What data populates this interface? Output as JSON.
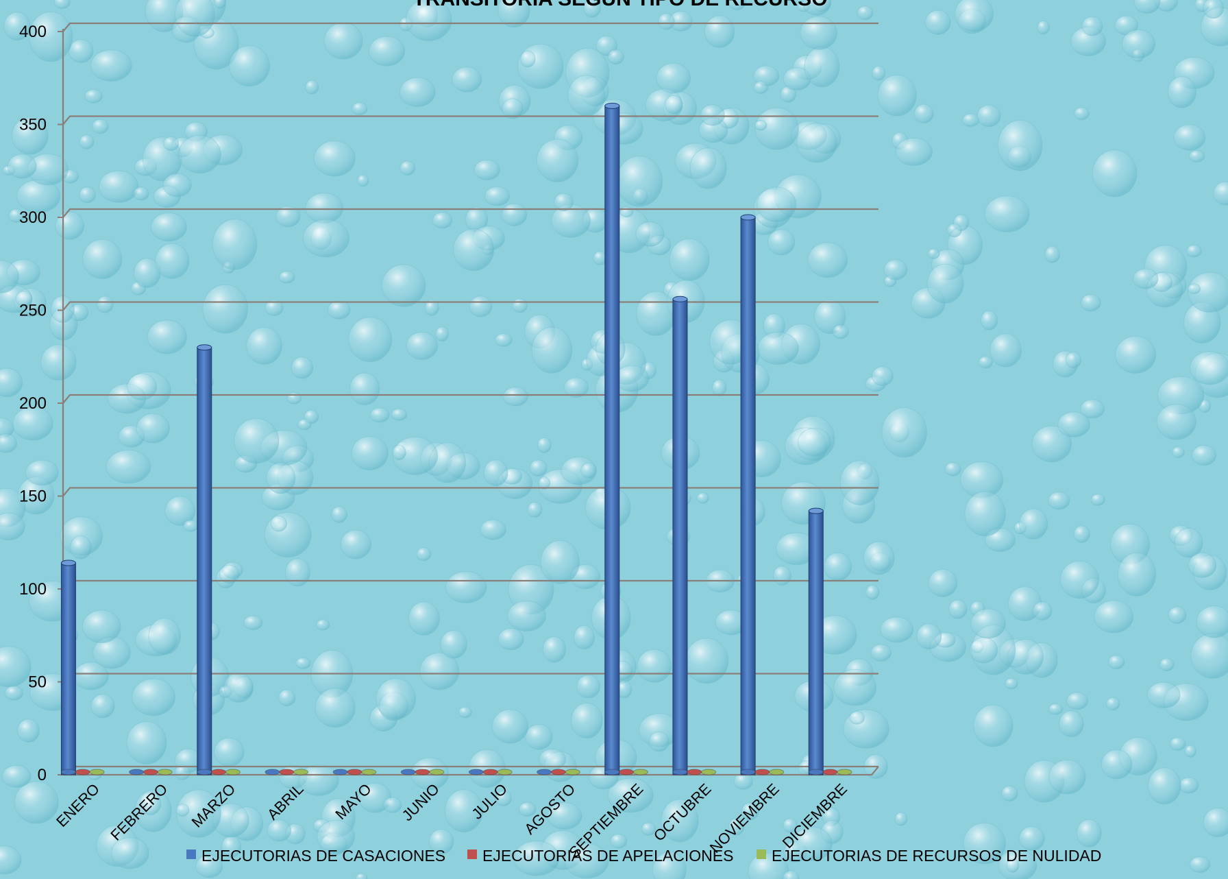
{
  "chart_data": {
    "type": "bar",
    "title": "TRANSITORIA SEGÚN TIPO DE RECURSO",
    "xlabel": "",
    "ylabel": "",
    "ylim": [
      0,
      400
    ],
    "yticks": [
      0,
      50,
      100,
      150,
      200,
      250,
      300,
      350,
      400
    ],
    "grid": true,
    "legend_position": "bottom",
    "categories": [
      "ENERO",
      "FEBRERO",
      "MARZO",
      "ABRIL",
      "MAYO",
      "JUNIO",
      "JULIO",
      "AGOSTO",
      "SEPTIEMBRE",
      "OCTUBRE",
      "NOVIEMBRE",
      "DICIEMBRE"
    ],
    "series": [
      {
        "name": "EJECUTORIAS DE CASACIONES",
        "color": "#4a78c0",
        "values": [
          114,
          0,
          230,
          0,
          0,
          0,
          0,
          0,
          360,
          256,
          300,
          142
        ]
      },
      {
        "name": "EJECUTORIAS DE APELACIONES",
        "color": "#c0504d",
        "values": [
          0,
          0,
          0,
          0,
          0,
          0,
          0,
          0,
          0,
          0,
          0,
          0
        ]
      },
      {
        "name": "EJECUTORIAS DE RECURSOS DE NULIDAD",
        "color": "#9bbb59",
        "values": [
          0,
          0,
          0,
          0,
          0,
          0,
          0,
          0,
          0,
          0,
          0,
          0
        ]
      }
    ]
  },
  "colors": {
    "background": "#8fd0dd",
    "gridline": "#8a7f78",
    "axis": "#8a7f78"
  }
}
